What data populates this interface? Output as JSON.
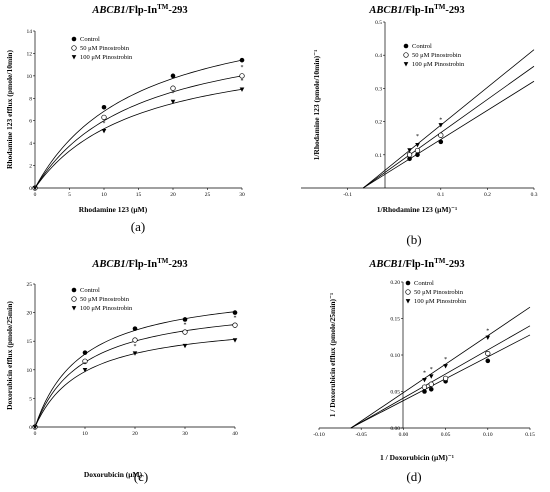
{
  "chart_data": [
    {
      "id": "a",
      "type": "line",
      "panel_label": "(a)",
      "title_italic": "ABCB1",
      "title_rest": "/Flp-In",
      "title_sup": "TM",
      "title_end": "-293",
      "xlabel": "Rhodamine 123 (μM)",
      "ylabel": "Rhodamine 123 efflux (pmole/10min)",
      "xlim": [
        0,
        30
      ],
      "ylim": [
        0,
        14
      ],
      "xticks": [
        "0",
        "5",
        "10",
        "15",
        "20",
        "25",
        "30"
      ],
      "yticks": [
        "0",
        "2",
        "4",
        "6",
        "8",
        "10",
        "12",
        "14"
      ],
      "legend_position": "top-left",
      "x": [
        0,
        10,
        20,
        30
      ],
      "series": [
        {
          "name": "Control",
          "marker": "filled-circle",
          "values": [
            0,
            7.2,
            10.0,
            11.4
          ],
          "curve": {
            "vmax": 17.1,
            "km": 15.0
          }
        },
        {
          "name": "50 μM Pinostrobin",
          "marker": "open-circle",
          "values": [
            0,
            6.3,
            8.9,
            10.0
          ],
          "curve": {
            "vmax": 15.0,
            "km": 15.0
          }
        },
        {
          "name": "100 μM Pinostrobin",
          "marker": "filled-triangle",
          "values": [
            0,
            5.1,
            7.7,
            8.8
          ],
          "curve": {
            "vmax": 13.2,
            "km": 15.0
          }
        }
      ],
      "annotations": [
        {
          "text": "*",
          "x": 10,
          "y": 5.6
        },
        {
          "text": "*",
          "x": 20,
          "y": 8.3
        },
        {
          "text": "*",
          "x": 30,
          "y": 10.6
        },
        {
          "text": "*",
          "x": 30,
          "y": 9.4
        }
      ]
    },
    {
      "id": "b",
      "type": "line",
      "panel_label": "(b)",
      "title_italic": "ABCB1",
      "title_rest": "/Flp-In",
      "title_sup": "TM",
      "title_end": "-293",
      "xlabel": "1/Rhodamine 123 (μM)⁻¹",
      "ylabel": "1/Rhodamine 123 (pmole/10min)⁻¹",
      "xlim": [
        -0.2,
        0.3
      ],
      "ylim": [
        0,
        0.5
      ],
      "xticks": [
        "-0.1",
        "0.1",
        "0.2",
        "0.3"
      ],
      "yticks": [
        "0.1",
        "0.2",
        "0.3",
        "0.4",
        "0.5"
      ],
      "legend_position": "top-left",
      "series": [
        {
          "name": "Control",
          "marker": "filled-circle",
          "x": [
            0.033,
            0.05,
            0.1
          ],
          "values": [
            0.088,
            0.1,
            0.139
          ],
          "line": {
            "slope": 0.877,
            "intercept": 0.0585
          }
        },
        {
          "name": "50 μM Pinostrobin",
          "marker": "open-circle",
          "x": [
            0.033,
            0.05,
            0.1
          ],
          "values": [
            0.1,
            0.113,
            0.159
          ],
          "line": {
            "slope": 1.0,
            "intercept": 0.0667
          }
        },
        {
          "name": "100 μM Pinostrobin",
          "marker": "filled-triangle",
          "x": [
            0.033,
            0.05,
            0.1
          ],
          "values": [
            0.114,
            0.13,
            0.19
          ],
          "line": {
            "slope": 1.136,
            "intercept": 0.0758
          }
        }
      ],
      "annotations": [
        {
          "text": "*",
          "x": 0.05,
          "y": 0.15
        },
        {
          "text": "*",
          "x": 0.1,
          "y": 0.2
        }
      ]
    },
    {
      "id": "c",
      "type": "line",
      "panel_label": "(c)",
      "title_italic": "ABCB1",
      "title_rest": "/Flp-In",
      "title_sup": "TM",
      "title_end": "-293",
      "xlabel": "Doxorubicin (μM)",
      "ylabel": "Doxorubicin efflux (pmole/25min)",
      "xlim": [
        0,
        40
      ],
      "ylim": [
        0,
        25
      ],
      "xticks": [
        "0",
        "10",
        "20",
        "30",
        "40"
      ],
      "yticks": [
        "0",
        "5",
        "10",
        "15",
        "20",
        "25"
      ],
      "legend_position": "top-left",
      "x": [
        0,
        10,
        20,
        30,
        40
      ],
      "series": [
        {
          "name": "Control",
          "marker": "filled-circle",
          "values": [
            0,
            13.0,
            17.2,
            18.8,
            20.0
          ],
          "curve": {
            "vmax": 25.0,
            "km": 9.6
          }
        },
        {
          "name": "50 μM Pinostrobin",
          "marker": "open-circle",
          "values": [
            0,
            11.5,
            15.2,
            16.6,
            17.8
          ],
          "curve": {
            "vmax": 22.2,
            "km": 9.6
          }
        },
        {
          "name": "100 μM Pinostrobin",
          "marker": "filled-triangle",
          "values": [
            0,
            10.0,
            12.9,
            14.2,
            15.2
          ],
          "curve": {
            "vmax": 19.0,
            "km": 9.6
          }
        }
      ],
      "annotations": [
        {
          "text": "*",
          "x": 10,
          "y": 10.7
        },
        {
          "text": "*",
          "x": 20,
          "y": 13.8
        },
        {
          "text": "*",
          "x": 30,
          "y": 17.6
        },
        {
          "text": "*",
          "x": 40,
          "y": 18.8
        }
      ]
    },
    {
      "id": "d",
      "type": "line",
      "panel_label": "(d)",
      "title_italic": "ABCB1",
      "title_rest": "/Flp-In",
      "title_sup": "TM",
      "title_end": "-293",
      "xlabel": "1 / Doxorubicin (μM)⁻¹",
      "ylabel": "1 / Doxorubicin efflux (pmole/25min)⁻¹",
      "xlim": [
        -0.1,
        0.15
      ],
      "ylim": [
        0,
        0.2
      ],
      "xticks": [
        "-0.10",
        "-0.05",
        "0.00",
        "0.05",
        "0.10",
        "0.15"
      ],
      "yticks": [
        "0.00",
        "0.05",
        "0.10",
        "0.15",
        "0.20"
      ],
      "legend_position": "top-left",
      "series": [
        {
          "name": "Control",
          "marker": "filled-circle",
          "x": [
            0.025,
            0.033,
            0.05,
            0.1
          ],
          "values": [
            0.05,
            0.053,
            0.064,
            0.092
          ],
          "line": {
            "slope": 0.6,
            "intercept": 0.0375
          }
        },
        {
          "name": "50 μM Pinostrobin",
          "marker": "open-circle",
          "x": [
            0.025,
            0.033,
            0.05,
            0.1
          ],
          "values": [
            0.056,
            0.06,
            0.068,
            0.102
          ],
          "line": {
            "slope": 0.66,
            "intercept": 0.041
          }
        },
        {
          "name": "100 μM Pinostrobin",
          "marker": "filled-triangle",
          "x": [
            0.025,
            0.033,
            0.05,
            0.1
          ],
          "values": [
            0.066,
            0.071,
            0.085,
            0.124
          ],
          "line": {
            "slope": 0.78,
            "intercept": 0.0485
          }
        }
      ],
      "annotations": [
        {
          "text": "*",
          "x": 0.025,
          "y": 0.073
        },
        {
          "text": "*",
          "x": 0.033,
          "y": 0.078
        },
        {
          "text": "*",
          "x": 0.05,
          "y": 0.092
        },
        {
          "text": "*",
          "x": 0.1,
          "y": 0.131
        }
      ]
    }
  ]
}
